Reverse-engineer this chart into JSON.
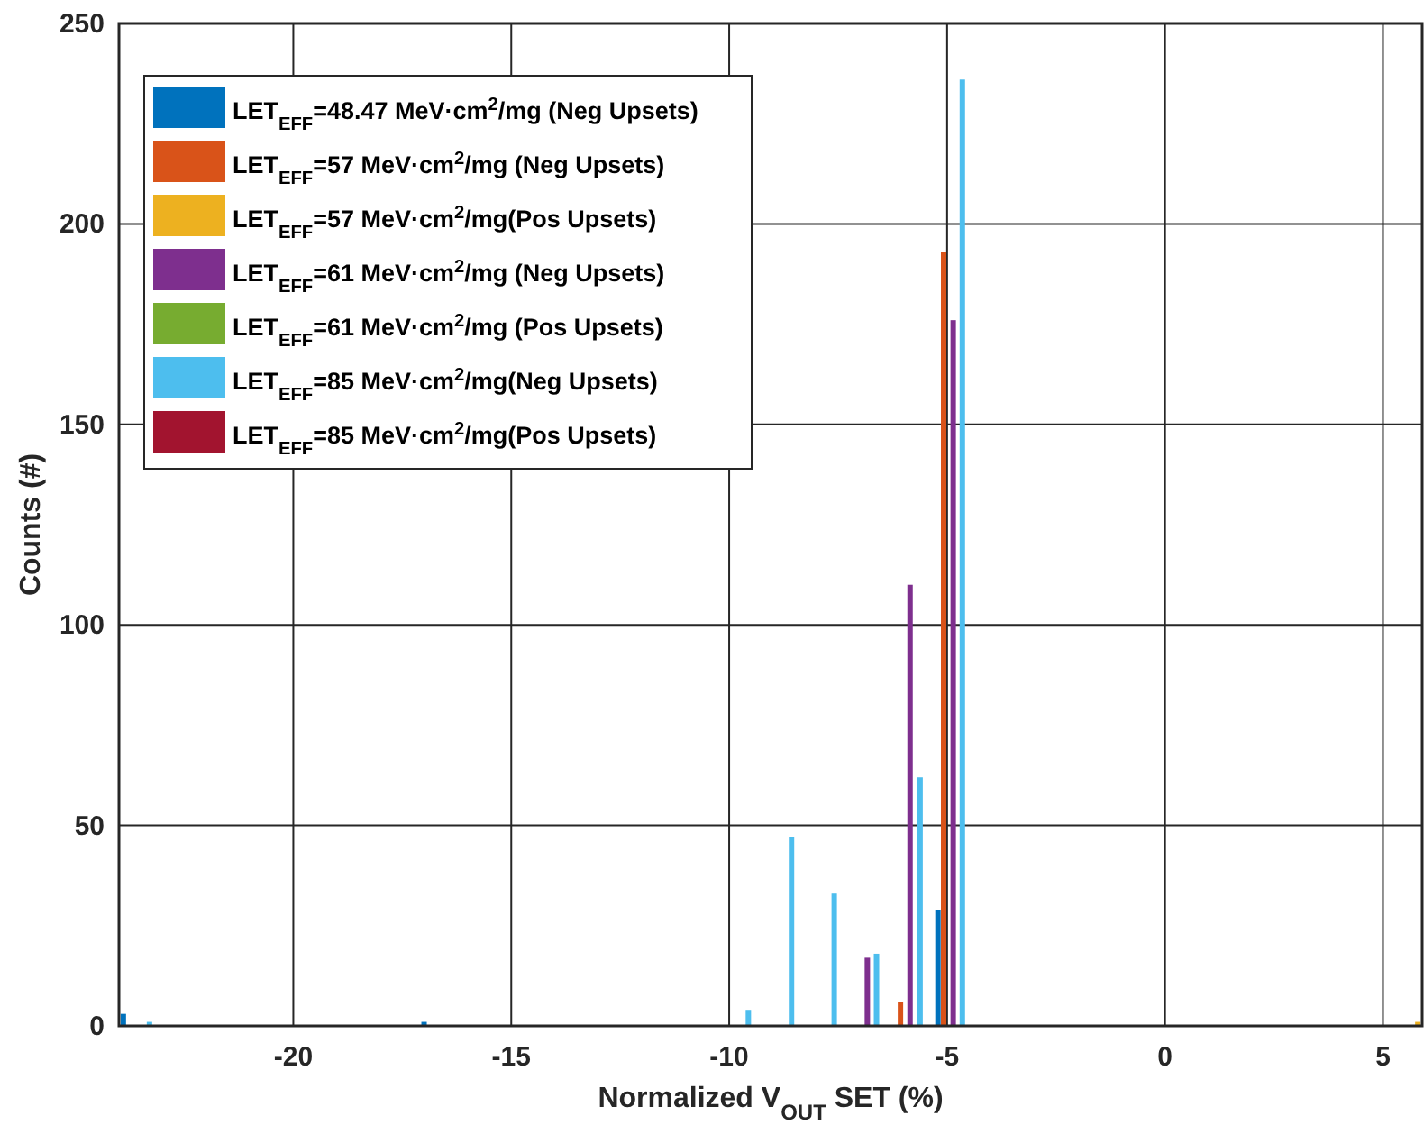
{
  "chart_data": {
    "type": "bar",
    "xlabel": "Normalized V$_{OUT}$ SET (%)",
    "ylabel": "Counts (#)",
    "xlim": [
      -24,
      5.9
    ],
    "xticks": [
      -20,
      -15,
      -10,
      -5,
      0,
      5
    ],
    "ylim": [
      0,
      250
    ],
    "yticks": [
      0,
      50,
      100,
      150,
      200,
      250
    ],
    "grid": true,
    "legend": "top left",
    "series": [
      {
        "name": "LET$_{EFF}$=48.47 MeV·cm$^{2}$/mg (Neg Upsets)",
        "color": "#0072bd",
        "x": [
          -23.9,
          -17,
          -5.21
        ],
        "values": [
          3,
          1,
          29
        ]
      },
      {
        "name": "LET$_{EFF}$=57 MeV·cm$^{2}$/mg (Neg Upsets)",
        "color": "#d95319",
        "x": [
          -6.07,
          -5.08
        ],
        "values": [
          6,
          193
        ]
      },
      {
        "name": "LET$_{EFF}$=57 MeV·cm$^{2}$/mg(Pos Upsets)",
        "color": "#edb120",
        "x": [
          5.8
        ],
        "values": [
          1
        ]
      },
      {
        "name": "LET$_{EFF}$=61 MeV·cm$^{2}$/mg (Neg Upsets)",
        "color": "#7e2f8e",
        "x": [
          -6.83,
          -5.85,
          -4.86
        ],
        "values": [
          17,
          110,
          176
        ]
      },
      {
        "name": "LET$_{EFF}$=61 MeV·cm$^{2}$/mg (Pos Upsets)",
        "color": "#77ac30"
      },
      {
        "name": "LET$_{EFF}$=85 MeV·cm$^{2}$/mg(Neg Upsets)",
        "color": "#4dbeee",
        "x": [
          -23.3,
          -9.56,
          -8.57,
          -7.59,
          -6.62,
          -5.62,
          -4.65
        ],
        "values": [
          1,
          4,
          47,
          33,
          18,
          62,
          236
        ]
      },
      {
        "name": "LET$_{EFF}$=85 MeV·cm$^{2}$/mg(Pos Upsets)",
        "color": "#a2142f"
      }
    ]
  }
}
